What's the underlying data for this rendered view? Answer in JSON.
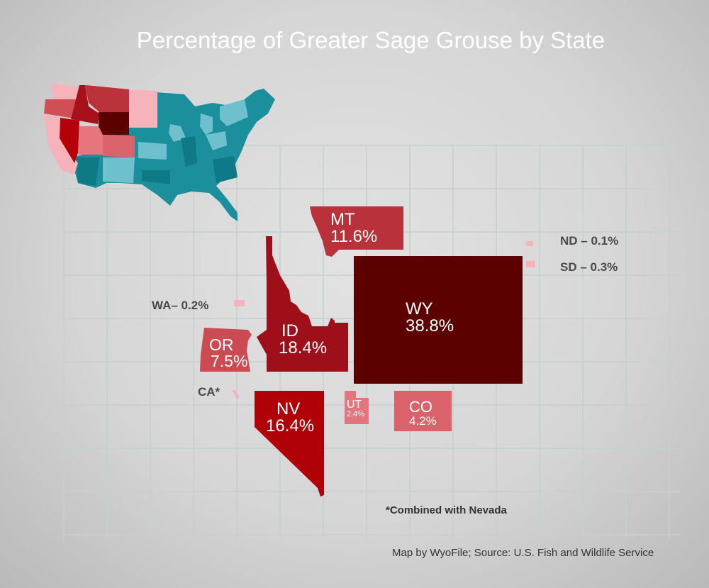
{
  "title": "Percentage of Greater Sage Grouse by State",
  "colors": {
    "WY": "#5c0000",
    "ID": "#9e0f1a",
    "NV": "#b00008",
    "MT": "#b8313b",
    "OR": "#cc4a52",
    "CO": "#d9626b",
    "UT": "#e2757d",
    "minor": "#f6b4ba",
    "other_states": "#1b8f9c"
  },
  "states": {
    "MT": {
      "abbr": "MT",
      "pct": "11.6%"
    },
    "ID": {
      "abbr": "ID",
      "pct": "18.4%"
    },
    "WY": {
      "abbr": "WY",
      "pct": "38.8%"
    },
    "OR": {
      "abbr": "OR",
      "pct": "7.5%"
    },
    "NV": {
      "abbr": "NV",
      "pct": "16.4%"
    },
    "UT": {
      "abbr": "UT",
      "pct": "2.4%"
    },
    "CO": {
      "abbr": "CO",
      "pct": "4.2%"
    },
    "WA": {
      "label": "WA– 0.2%"
    },
    "ND": {
      "label": "ND – 0.1%"
    },
    "SD": {
      "label": "SD – 0.3%"
    },
    "CA": {
      "label": "CA*"
    }
  },
  "footnote": "*Combined with Nevada",
  "credit": "Map by WyoFile; Source: U.S. Fish and Wildlife Service"
}
